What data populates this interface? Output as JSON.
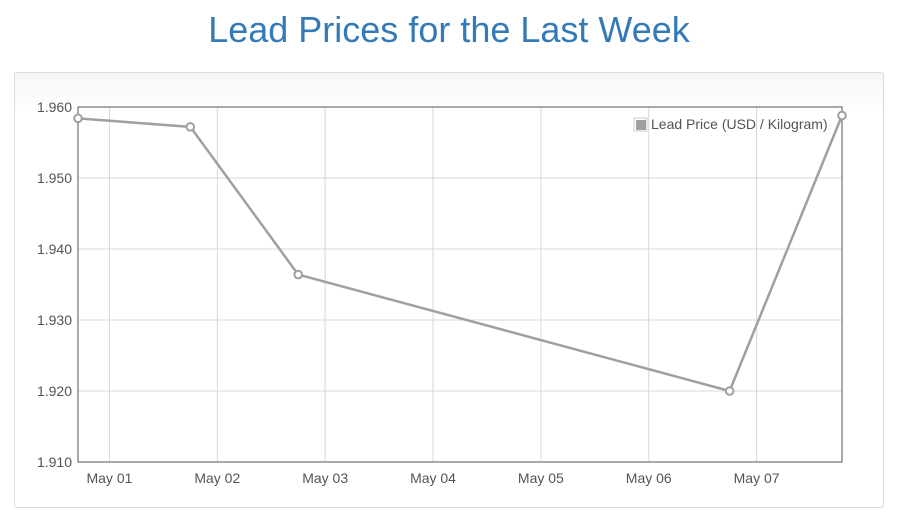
{
  "page": {
    "title": "Lead Prices for the Last Week"
  },
  "colors": {
    "title": "#337ab7",
    "series": "#a0a0a0",
    "grid": "#d8d8d8",
    "axis": "#545454",
    "text": "#545454"
  },
  "chart_data": {
    "type": "line",
    "title": "Lead Prices for the Last Week",
    "xlabel": "",
    "ylabel": "",
    "x_tick_labels": [
      "May 01",
      "May 02",
      "May 03",
      "May 04",
      "May 05",
      "May 06",
      "May 07"
    ],
    "y_tick_labels": [
      "1.960",
      "1.950",
      "1.940",
      "1.930",
      "1.920",
      "1.910"
    ],
    "ylim": [
      1.91,
      1.96
    ],
    "xlim": [
      "2024-04-30T17:00",
      "2024-05-07T19:00"
    ],
    "grid": true,
    "legend_position": "top-right",
    "series": [
      {
        "name": "Lead Price (USD / Kilogram)",
        "points": [
          {
            "x": "2024-04-30T17:00",
            "y": 1.9584
          },
          {
            "x": "2024-05-01T18:00",
            "y": 1.9572
          },
          {
            "x": "2024-05-02T18:00",
            "y": 1.9364
          },
          {
            "x": "2024-05-06T18:00",
            "y": 1.92
          },
          {
            "x": "2024-05-07T19:00",
            "y": 1.9588
          }
        ]
      }
    ]
  }
}
